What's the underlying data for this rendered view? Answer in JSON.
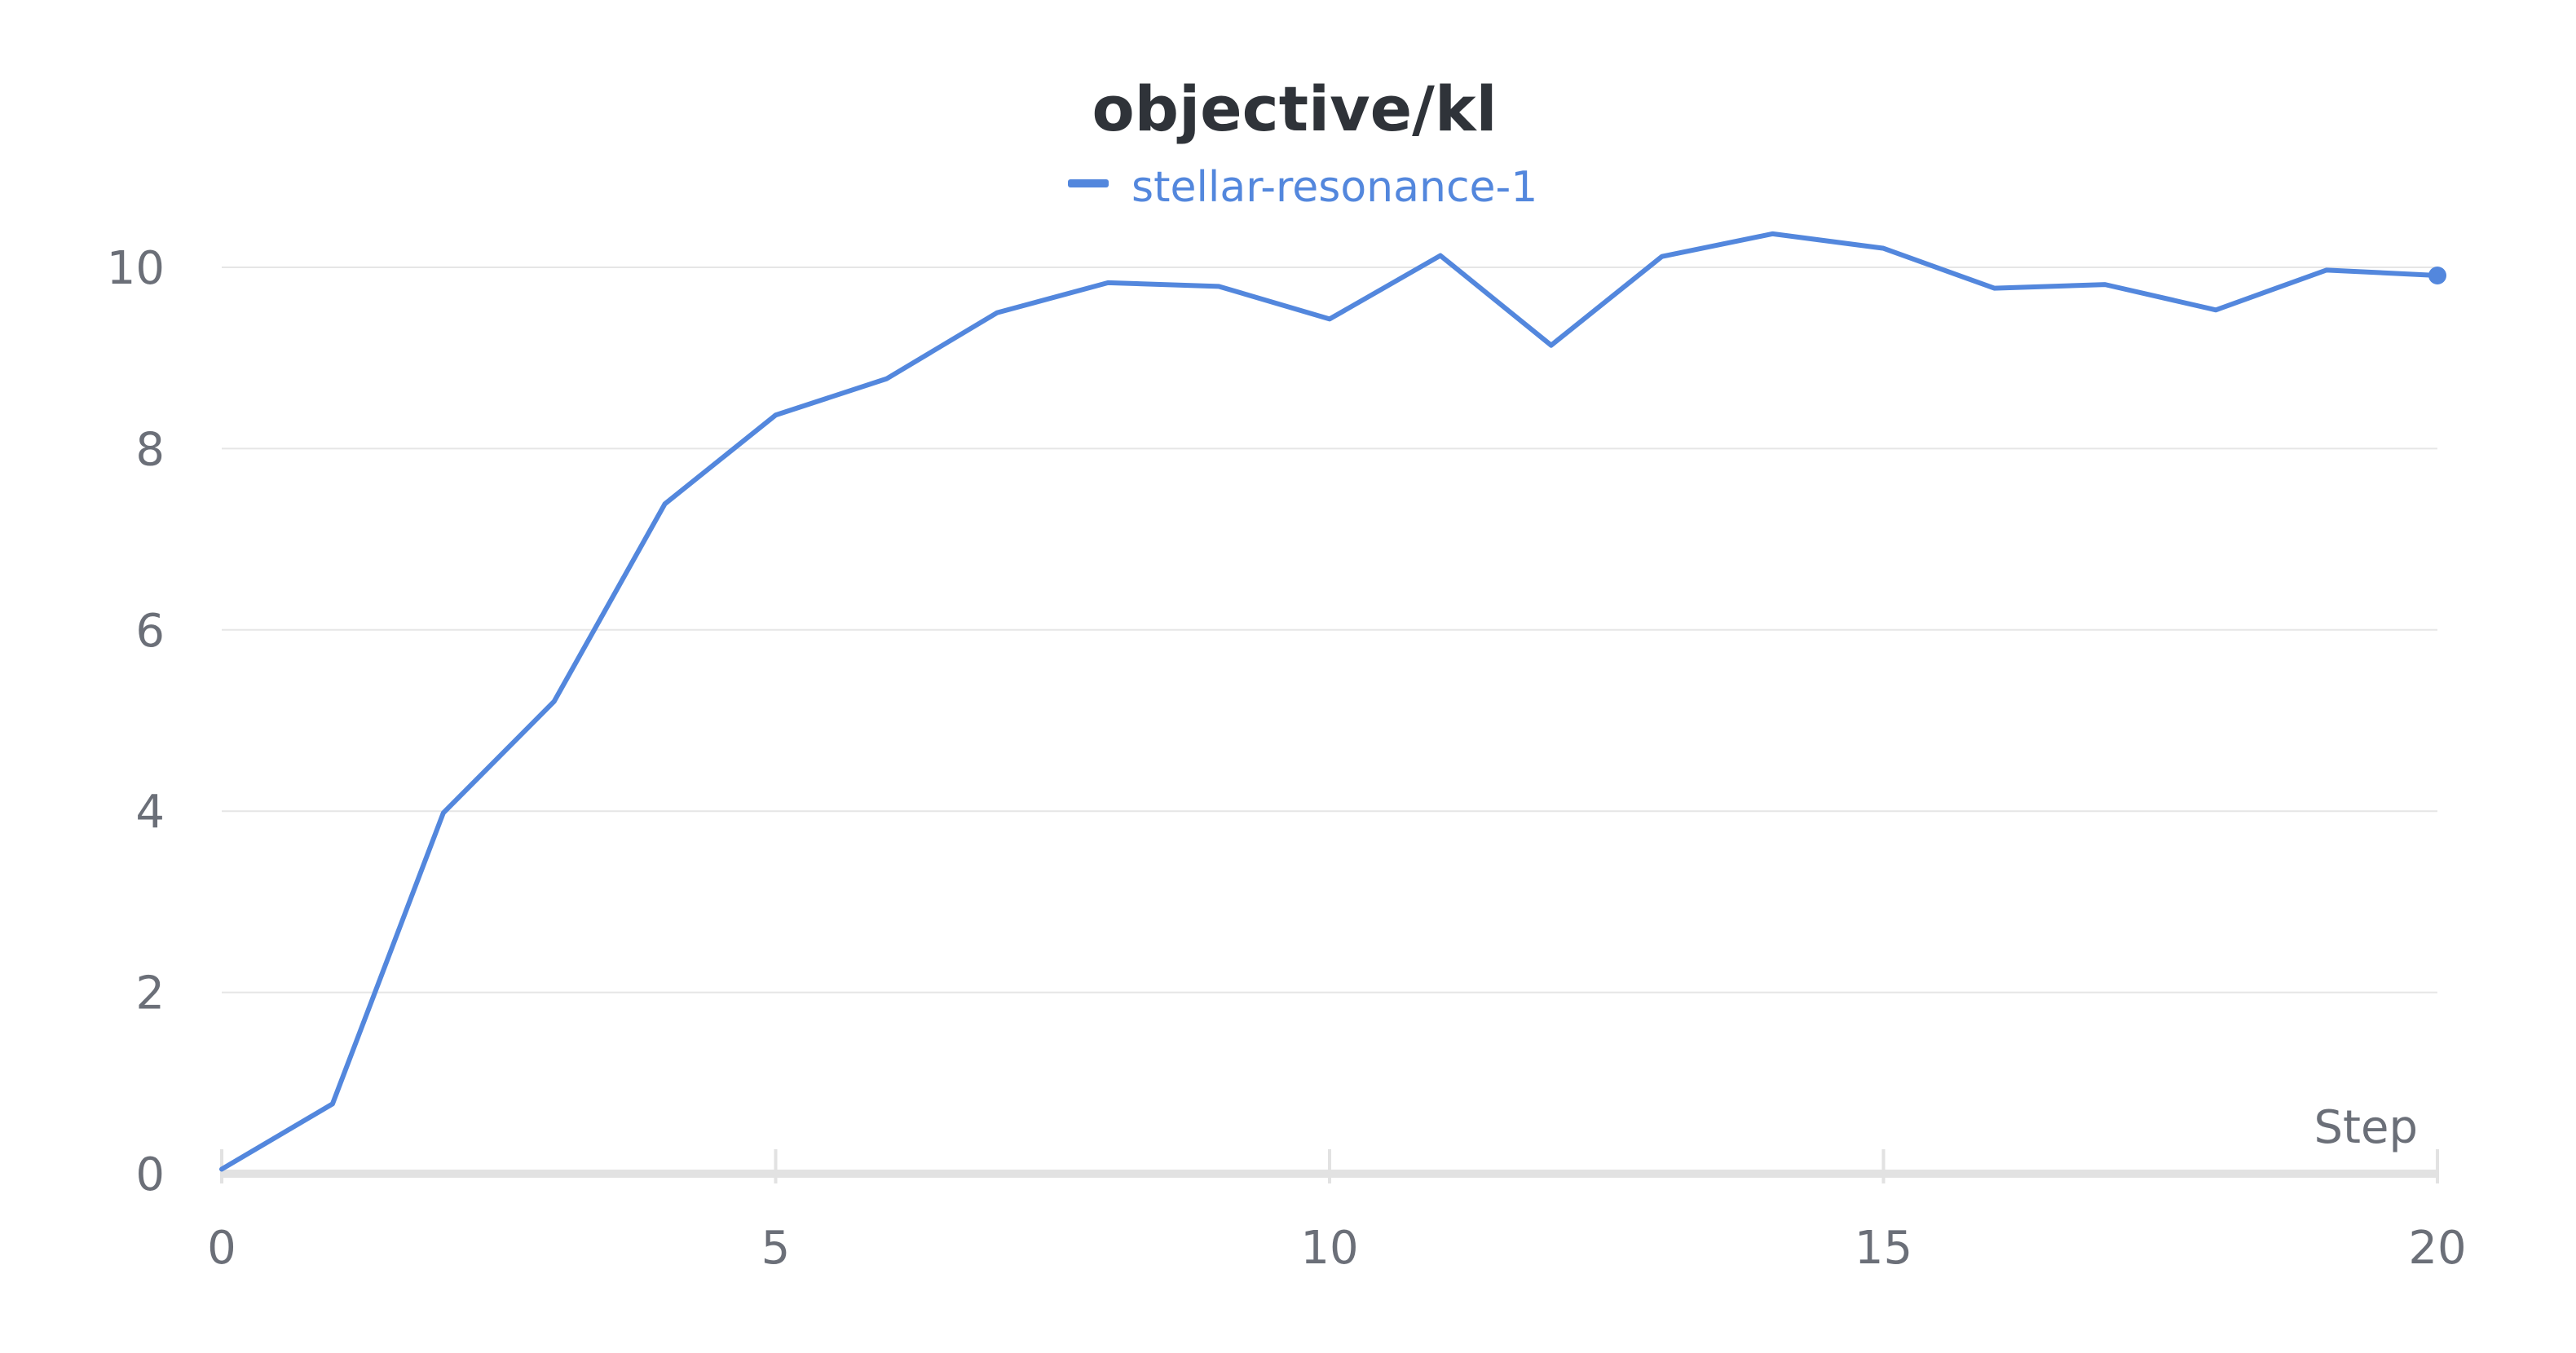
{
  "chart_data": {
    "type": "line",
    "title": "objective/kl",
    "xlabel": "Step",
    "ylabel": "",
    "xlim": [
      0,
      20
    ],
    "ylim": [
      0,
      11
    ],
    "xticks": [
      0,
      5,
      10,
      15,
      20
    ],
    "yticks": [
      0,
      2,
      4,
      6,
      8,
      10
    ],
    "grid": true,
    "legend_position": "top-center",
    "series": [
      {
        "name": "stellar-resonance-1",
        "color": "#5387dd",
        "x": [
          0,
          1,
          2,
          3,
          4,
          5,
          6,
          7,
          8,
          9,
          10,
          11,
          12,
          13,
          14,
          15,
          16,
          17,
          18,
          19,
          20
        ],
        "y": [
          0.05,
          0.77,
          3.98,
          5.21,
          7.39,
          8.37,
          8.77,
          9.5,
          9.83,
          9.79,
          9.43,
          10.13,
          9.14,
          10.12,
          10.37,
          10.21,
          9.77,
          9.81,
          9.53,
          9.97,
          9.91
        ],
        "end_marker": true
      }
    ]
  }
}
